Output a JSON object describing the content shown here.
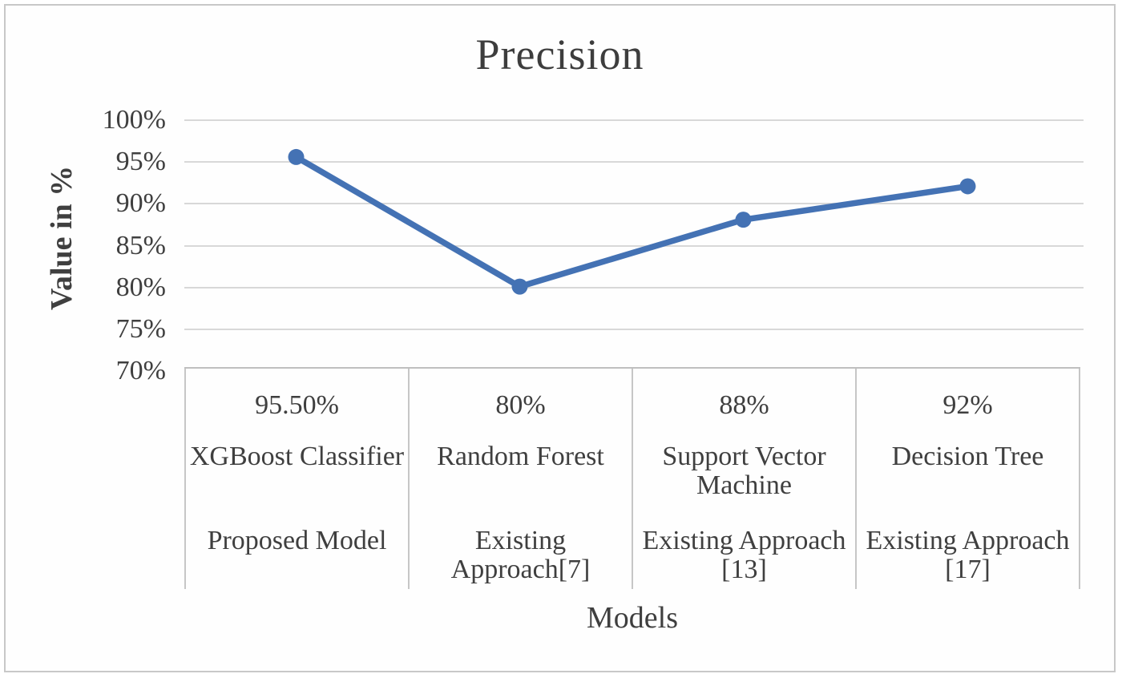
{
  "chart": {
    "title": "Precision",
    "y_axis": {
      "title": "Value in %",
      "ticks": [
        "100%",
        "95%",
        "90%",
        "85%",
        "80%",
        "75%",
        "70%"
      ]
    },
    "x_axis": {
      "title": "Models"
    }
  },
  "chart_data": {
    "type": "line",
    "title": "Precision",
    "xlabel": "Models",
    "ylabel": "Value in %",
    "ylim": [
      70,
      100
    ],
    "y_tick_step": 5,
    "grid": true,
    "legend": false,
    "categories": [
      "XGBoost Classifier",
      "Random Forest",
      "Support Vector Machine",
      "Decision Tree"
    ],
    "series": [
      {
        "name": "Precision",
        "values": [
          95.5,
          80,
          88,
          92
        ]
      }
    ],
    "point_labels": [
      "95.50%",
      "80%",
      "88%",
      "92%"
    ],
    "line_color": "#4472B4"
  },
  "data_table": {
    "columns": [
      {
        "value": "95.50%",
        "model": "XGBoost Classifier",
        "approach": "Proposed Model"
      },
      {
        "value": "80%",
        "model": "Random Forest",
        "approach": "Existing\nApproach[7]"
      },
      {
        "value": "88%",
        "model": "Support Vector\nMachine",
        "approach": "Existing Approach\n[13]"
      },
      {
        "value": "92%",
        "model": "Decision Tree",
        "approach": "Existing Approach\n[17]"
      }
    ]
  },
  "colors": {
    "line": "#4472B4",
    "gridline": "#D8D8D8",
    "table_border": "#C6C6C6",
    "text": "#3F3F3F",
    "figure_border": "#C8C8C8",
    "background": "#FFFFFF"
  }
}
